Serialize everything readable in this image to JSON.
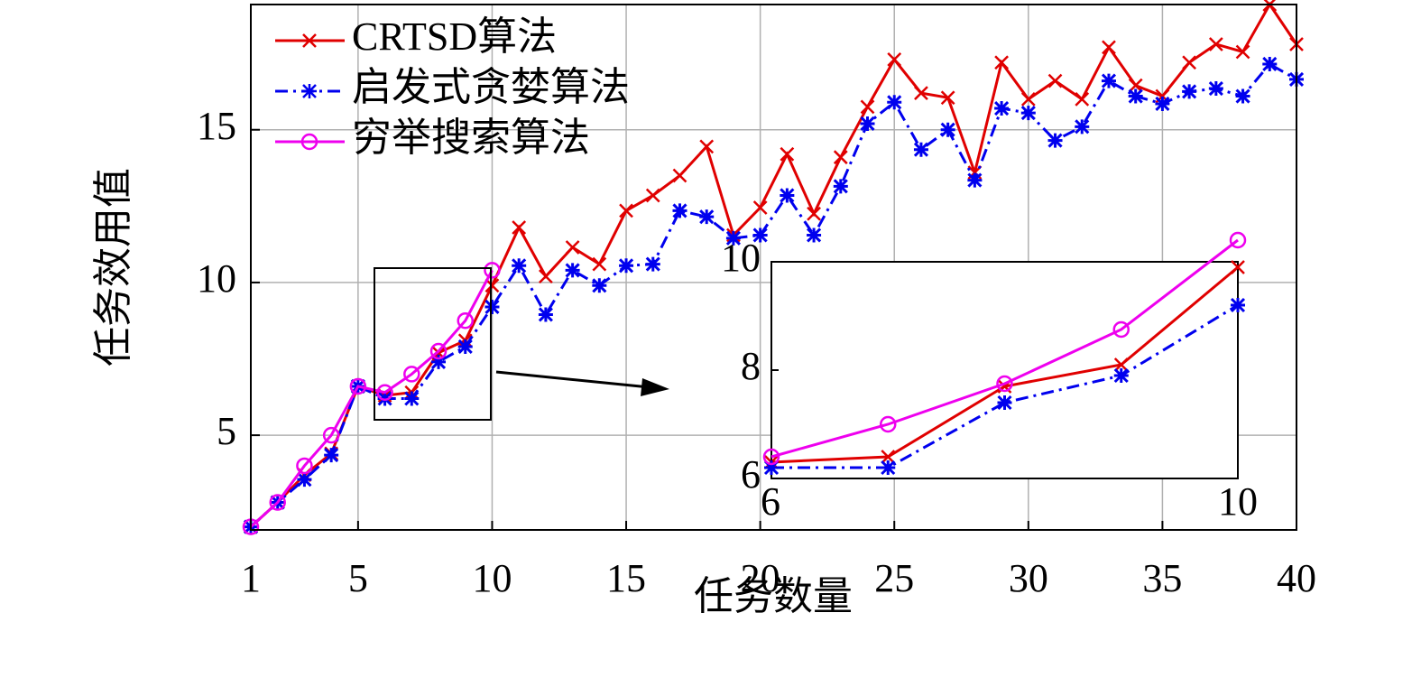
{
  "chart_data": {
    "type": "line",
    "xlabel": "任务数量",
    "ylabel": "任务效用值",
    "x": [
      1,
      2,
      3,
      4,
      5,
      6,
      7,
      8,
      9,
      10,
      11,
      12,
      13,
      14,
      15,
      16,
      17,
      18,
      19,
      20,
      21,
      22,
      23,
      24,
      25,
      26,
      27,
      28,
      29,
      30,
      31,
      32,
      33,
      34,
      35,
      36,
      37,
      38,
      39,
      40
    ],
    "series": [
      {
        "name": "CRTSD算法",
        "color": "#e00000",
        "marker": "x",
        "linestyle": "solid",
        "values": [
          2.0,
          2.8,
          3.7,
          4.4,
          6.6,
          6.3,
          6.4,
          7.7,
          8.1,
          9.9,
          11.8,
          10.2,
          11.15,
          10.6,
          12.35,
          12.85,
          13.5,
          14.45,
          11.55,
          12.45,
          14.2,
          12.25,
          14.1,
          15.75,
          17.3,
          16.2,
          16.05,
          13.6,
          17.2,
          16.0,
          16.6,
          16.0,
          17.7,
          16.45,
          16.1,
          17.2,
          17.8,
          17.55,
          19.1,
          17.8
        ]
      },
      {
        "name": "启发式贪婪算法",
        "color": "#0000ee",
        "marker": "asterisk",
        "linestyle": "dashdot",
        "values": [
          2.0,
          2.8,
          3.55,
          4.35,
          6.6,
          6.2,
          6.2,
          7.4,
          7.9,
          9.2,
          10.55,
          8.95,
          10.4,
          9.9,
          10.55,
          10.6,
          12.35,
          12.15,
          11.45,
          11.55,
          12.85,
          11.55,
          13.15,
          15.2,
          15.9,
          14.35,
          15.0,
          13.35,
          15.7,
          15.55,
          14.65,
          15.1,
          16.6,
          16.1,
          15.85,
          16.25,
          16.35,
          16.1,
          17.15,
          16.65
        ]
      },
      {
        "name": "穷举搜索算法",
        "color": "#ee00ee",
        "marker": "circle",
        "linestyle": "solid",
        "values": [
          2.0,
          2.8,
          4.0,
          5.0,
          6.6,
          6.4,
          7.0,
          7.75,
          8.75,
          10.4,
          null,
          null,
          null,
          null,
          null,
          null,
          null,
          null,
          null,
          null,
          null,
          null,
          null,
          null,
          null,
          null,
          null,
          null,
          null,
          null,
          null,
          null,
          null,
          null,
          null,
          null,
          null,
          null,
          null,
          null
        ]
      }
    ],
    "xlim": [
      1,
      40
    ],
    "ylim": [
      1.9,
      19.1
    ],
    "xticks": [
      1,
      5,
      10,
      15,
      20,
      25,
      30,
      35,
      40
    ],
    "yticks": [
      5,
      10,
      15
    ],
    "grid": true,
    "legend": "upper left",
    "inset": {
      "xlim": [
        6,
        10
      ],
      "ylim": [
        6,
        10
      ],
      "xticks": [
        6,
        10
      ],
      "yticks": [
        6,
        8,
        10
      ]
    }
  }
}
